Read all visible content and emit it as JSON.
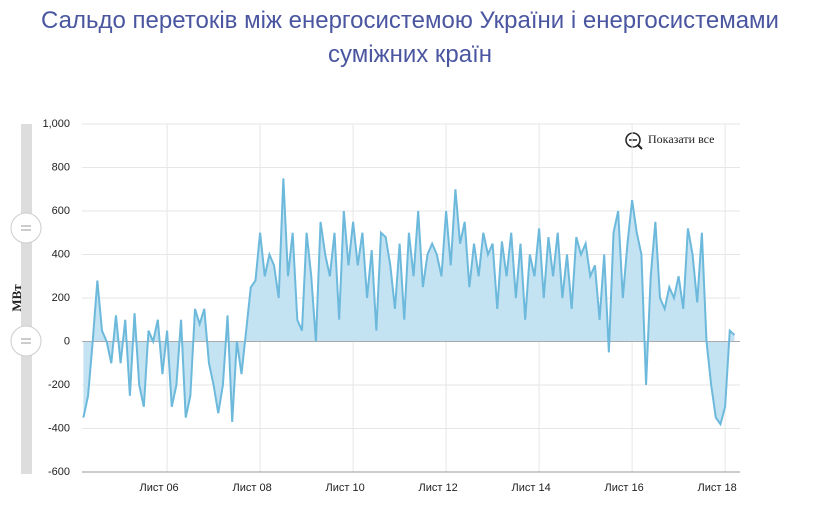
{
  "reset_zoom": "Показати все",
  "chart_data": {
    "type": "area",
    "title": "Сальдо перетоків між енергосистемою України і енергосистемами суміжних країн",
    "y_label": "МВт",
    "xlim": [
      4.17,
      18.32
    ],
    "xticks": [
      {
        "value": 6,
        "label": "Лист 06"
      },
      {
        "value": 8,
        "label": "Лист 08"
      },
      {
        "value": 10,
        "label": "Лист 10"
      },
      {
        "value": 12,
        "label": "Лист 12"
      },
      {
        "value": 14,
        "label": "Лист 14"
      },
      {
        "value": 16,
        "label": "Лист 16"
      },
      {
        "value": 18,
        "label": "Лист 18"
      }
    ],
    "ylim": [
      -600,
      1000
    ],
    "yticks": [
      -600,
      -400,
      -200,
      0,
      200,
      400,
      600,
      800,
      {
        "value": 1000,
        "label": "1,000"
      }
    ],
    "grid": true,
    "line_color": "#6cb9dc",
    "fill_color": "#c3e2f2",
    "x": [
      4.2,
      4.3,
      4.4,
      4.5,
      4.6,
      4.7,
      4.8,
      4.9,
      5.0,
      5.1,
      5.2,
      5.3,
      5.4,
      5.5,
      5.6,
      5.7,
      5.8,
      5.9,
      6.0,
      6.1,
      6.2,
      6.3,
      6.4,
      6.5,
      6.6,
      6.7,
      6.8,
      6.9,
      7.0,
      7.1,
      7.2,
      7.3,
      7.4,
      7.5,
      7.6,
      7.7,
      7.8,
      7.9,
      8.0,
      8.1,
      8.2,
      8.3,
      8.4,
      8.5,
      8.6,
      8.7,
      8.8,
      8.9,
      9.0,
      9.1,
      9.2,
      9.3,
      9.4,
      9.5,
      9.6,
      9.7,
      9.8,
      9.9,
      10.0,
      10.1,
      10.2,
      10.3,
      10.4,
      10.5,
      10.6,
      10.7,
      10.8,
      10.9,
      11.0,
      11.1,
      11.2,
      11.3,
      11.4,
      11.5,
      11.6,
      11.7,
      11.8,
      11.9,
      12.0,
      12.1,
      12.2,
      12.3,
      12.4,
      12.5,
      12.6,
      12.7,
      12.8,
      12.9,
      13.0,
      13.1,
      13.2,
      13.3,
      13.4,
      13.5,
      13.6,
      13.7,
      13.8,
      13.9,
      14.0,
      14.1,
      14.2,
      14.3,
      14.4,
      14.5,
      14.6,
      14.7,
      14.8,
      14.9,
      15.0,
      15.1,
      15.2,
      15.3,
      15.4,
      15.5,
      15.6,
      15.7,
      15.8,
      15.9,
      16.0,
      16.1,
      16.2,
      16.3,
      16.4,
      16.5,
      16.6,
      16.7,
      16.8,
      16.9,
      17.0,
      17.1,
      17.2,
      17.3,
      17.4,
      17.5,
      17.6,
      17.7,
      17.8,
      17.9,
      18.0,
      18.1,
      18.2
    ],
    "values": [
      -350,
      -250,
      0,
      280,
      50,
      0,
      -100,
      120,
      -100,
      100,
      -250,
      130,
      -200,
      -300,
      50,
      0,
      100,
      -150,
      50,
      -300,
      -200,
      100,
      -350,
      -250,
      150,
      80,
      150,
      -100,
      -200,
      -330,
      -200,
      120,
      -370,
      0,
      -150,
      50,
      250,
      280,
      500,
      300,
      400,
      350,
      200,
      750,
      300,
      500,
      100,
      50,
      500,
      300,
      0,
      550,
      400,
      300,
      500,
      100,
      600,
      350,
      550,
      350,
      500,
      200,
      420,
      50,
      500,
      480,
      350,
      150,
      450,
      100,
      500,
      300,
      600,
      250,
      400,
      450,
      400,
      300,
      600,
      350,
      700,
      450,
      550,
      250,
      450,
      300,
      500,
      400,
      450,
      150,
      460,
      300,
      500,
      200,
      450,
      100,
      400,
      300,
      520,
      200,
      480,
      300,
      500,
      200,
      400,
      150,
      480,
      400,
      450,
      300,
      350,
      100,
      400,
      -50,
      500,
      600,
      200,
      450,
      650,
      500,
      400,
      -200,
      300,
      550,
      200,
      150,
      250,
      200,
      300,
      150,
      520,
      400,
      180,
      500,
      0,
      -200,
      -350,
      -380,
      -300,
      50,
      30
    ]
  }
}
